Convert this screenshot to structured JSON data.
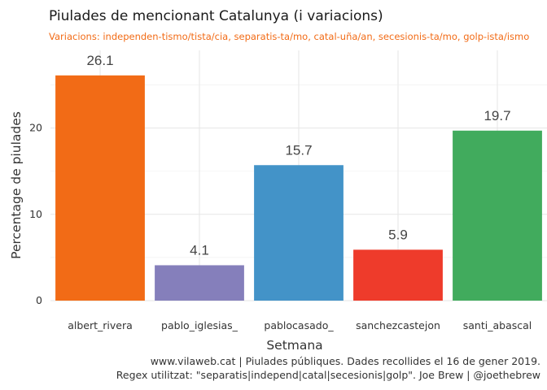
{
  "chart_data": {
    "type": "bar",
    "title": "Piulades de mencionant Catalunya (i variacions)",
    "subtitle": "Variacions: independen-tismo/tista/cia, separatis-ta/mo, catal-uña/an, secesionis-ta/mo, golp-ista/ismo",
    "xlabel": "Setmana",
    "ylabel": "Percentage de piulades",
    "categories": [
      "albert_rivera",
      "pablo_iglesias_",
      "pablocasado_",
      "sanchezcastejon",
      "santi_abascal"
    ],
    "values": [
      26.1,
      4.1,
      15.7,
      5.9,
      19.7
    ],
    "data_labels": [
      "26.1",
      "4.1",
      "15.7",
      "5.9",
      "19.7"
    ],
    "colors": [
      "#f26b16",
      "#857fbb",
      "#4393c8",
      "#ee3b2b",
      "#41ab5d"
    ],
    "ylim": [
      0,
      29
    ],
    "yticks": [
      0,
      10,
      20
    ],
    "ytick_labels": [
      "0",
      "10",
      "20"
    ],
    "grid": true,
    "legend": "none",
    "caption_lines": [
      "www.vilaweb.cat | Piulades públiques. Dades recollides el 16 de gener 2019.",
      "Regex utilitzat: \"separatis|independ|catal|secesionis|golp\". Joe Brew | @joethebrew"
    ]
  }
}
